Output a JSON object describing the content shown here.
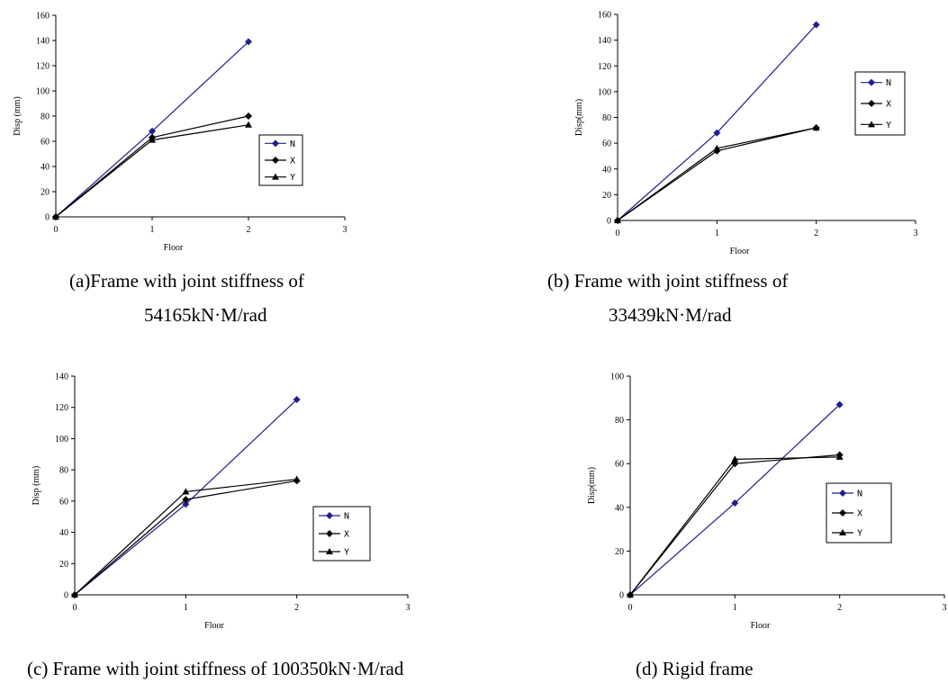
{
  "colors": {
    "N": "#1f1f8f",
    "X": "#000000",
    "Y": "#000000",
    "axis": "#000000"
  },
  "captions": {
    "a_line1": "(a)Frame with joint stiffness of",
    "a_line2": "54165kN·M/rad",
    "b_line1": "(b) Frame with joint stiffness of",
    "b_line2": "33439kN·M/rad",
    "c": "(c) Frame with joint stiffness of 100350kN·M/rad",
    "d": "(d) Rigid frame"
  },
  "chart_data": [
    {
      "id": "a",
      "type": "line",
      "xlabel": "Floor",
      "ylabel": "Disp (mm)",
      "x": [
        0,
        1,
        2
      ],
      "xlim": [
        0,
        3
      ],
      "xticks": [
        0,
        1,
        2,
        3
      ],
      "ylim": [
        0,
        160
      ],
      "yticks": [
        0,
        20,
        40,
        60,
        80,
        100,
        120,
        140,
        160
      ],
      "grid": false,
      "legend_position": "right",
      "series": [
        {
          "name": "N",
          "values": [
            0,
            68,
            139
          ],
          "marker": "diamond",
          "color": "#1f1f8f"
        },
        {
          "name": "X",
          "values": [
            0,
            63,
            80
          ],
          "marker": "diamond",
          "color": "#000000"
        },
        {
          "name": "Y",
          "values": [
            0,
            61,
            73
          ],
          "marker": "triangle",
          "color": "#000000"
        }
      ]
    },
    {
      "id": "b",
      "type": "line",
      "xlabel": "Floor",
      "ylabel": "Disp(mm)",
      "x": [
        0,
        1,
        2
      ],
      "xlim": [
        0,
        3
      ],
      "xticks": [
        0,
        1,
        2,
        3
      ],
      "ylim": [
        0,
        160
      ],
      "yticks": [
        0,
        20,
        40,
        60,
        80,
        100,
        120,
        140,
        160
      ],
      "grid": false,
      "legend_position": "top-right",
      "series": [
        {
          "name": "N",
          "values": [
            0,
            68,
            152
          ],
          "marker": "diamond",
          "color": "#1f1f8f"
        },
        {
          "name": "X",
          "values": [
            0,
            54,
            72
          ],
          "marker": "diamond",
          "color": "#000000"
        },
        {
          "name": "Y",
          "values": [
            0,
            56,
            72
          ],
          "marker": "triangle",
          "color": "#000000"
        }
      ]
    },
    {
      "id": "c",
      "type": "line",
      "xlabel": "Floor",
      "ylabel": "Disp (mm)",
      "x": [
        0,
        1,
        2
      ],
      "xlim": [
        0,
        3
      ],
      "xticks": [
        0,
        1,
        2,
        3
      ],
      "ylim": [
        0,
        140
      ],
      "yticks": [
        0,
        20,
        40,
        60,
        80,
        100,
        120,
        140
      ],
      "grid": false,
      "legend_position": "right",
      "series": [
        {
          "name": "N",
          "values": [
            0,
            58,
            125
          ],
          "marker": "diamond",
          "color": "#1f1f8f"
        },
        {
          "name": "X",
          "values": [
            0,
            61,
            73
          ],
          "marker": "diamond",
          "color": "#000000"
        },
        {
          "name": "Y",
          "values": [
            0,
            66,
            74
          ],
          "marker": "triangle",
          "color": "#000000"
        }
      ]
    },
    {
      "id": "d",
      "type": "line",
      "xlabel": "Floor",
      "ylabel": "Disp(mm)",
      "x": [
        0,
        1,
        2
      ],
      "xlim": [
        0,
        3
      ],
      "xticks": [
        0,
        1,
        2,
        3
      ],
      "ylim": [
        0,
        100
      ],
      "yticks": [
        0,
        20,
        40,
        60,
        80,
        100
      ],
      "grid": false,
      "legend_position": "right",
      "series": [
        {
          "name": "N",
          "values": [
            0,
            42,
            87
          ],
          "marker": "diamond",
          "color": "#1f1f8f"
        },
        {
          "name": "X",
          "values": [
            0,
            60,
            64
          ],
          "marker": "diamond",
          "color": "#000000"
        },
        {
          "name": "Y",
          "values": [
            0,
            62,
            63
          ],
          "marker": "triangle",
          "color": "#000000"
        }
      ]
    }
  ]
}
